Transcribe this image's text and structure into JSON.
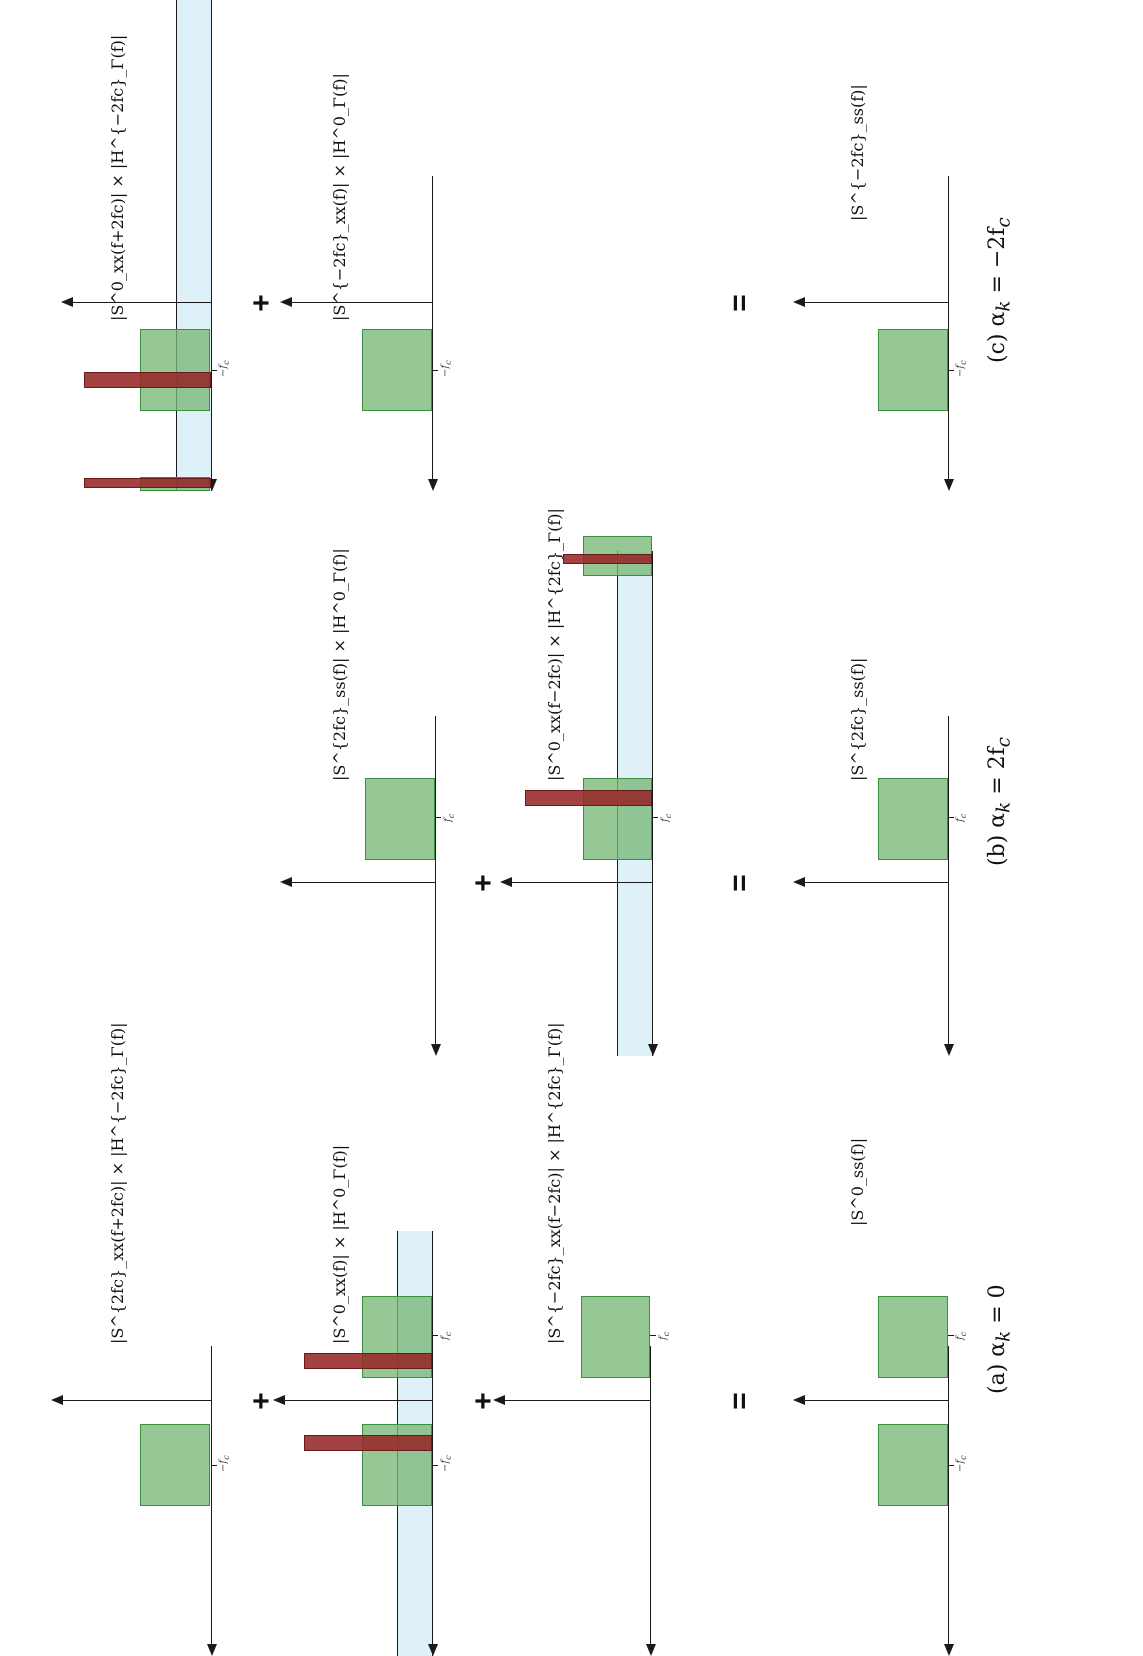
{
  "colors": {
    "signal_fill": "#7ab97a",
    "signal_border": "#3c8f3c",
    "interference_fill": "#962828",
    "filter_band_fill": "#b9e1f0",
    "axis": "#1a1a1a"
  },
  "tick_labels": {
    "neg_fc": "−f",
    "neg_fc_sub": "c",
    "pos_fc": "f",
    "pos_fc_sub": "c"
  },
  "operators": {
    "plus": "+",
    "equals": "="
  },
  "panels": {
    "a": {
      "caption": "(a) α",
      "caption_sub": "k",
      "caption_eq": " = 0",
      "terms": [
        {
          "label": "|S^{2fc}_xx(f+2fc)| × |H^{−2fc}_Γ(f)|"
        },
        {
          "label": "|S^0_xx(f)| × |H^0_Γ(f)|"
        },
        {
          "label": "|S^{−2fc}_xx(f−2fc)| × |H^{2fc}_Γ(f)|"
        }
      ],
      "result_label": "|S^0_ss(f)|"
    },
    "b": {
      "caption": "(b) α",
      "caption_sub": "k",
      "caption_eq": " = 2f",
      "caption_eq_sub": "c",
      "terms": [
        {
          "label": "|S^{2fc}_ss(f)| × |H^0_Γ(f)|"
        },
        {
          "label": "|S^0_xx(f−2fc)| × |H^{2fc}_Γ(f)|"
        }
      ],
      "result_label": "|S^{2fc}_ss(f)|"
    },
    "c": {
      "caption": "(c) α",
      "caption_sub": "k",
      "caption_eq": " = −2f",
      "caption_eq_sub": "c",
      "terms": [
        {
          "label": "|S^0_xx(f+2fc)| × |H^{−2fc}_Γ(f)|"
        },
        {
          "label": "|S^{−2fc}_xx(f)| × |H^0_Γ(f)|"
        }
      ],
      "result_label": "|S^{−2fc}_ss(f)|"
    }
  }
}
